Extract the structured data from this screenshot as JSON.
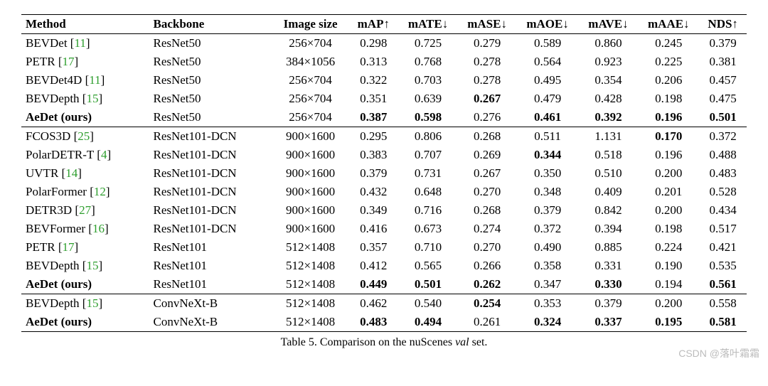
{
  "columns": [
    {
      "key": "method",
      "label": "Method",
      "align": "left"
    },
    {
      "key": "backbone",
      "label": "Backbone",
      "align": "left"
    },
    {
      "key": "imgsize",
      "label": "Image size",
      "align": "center"
    },
    {
      "key": "map",
      "label": "mAP↑",
      "align": "center"
    },
    {
      "key": "mate",
      "label": "mATE↓",
      "align": "center"
    },
    {
      "key": "mase",
      "label": "mASE↓",
      "align": "center"
    },
    {
      "key": "maoe",
      "label": "mAOE↓",
      "align": "center"
    },
    {
      "key": "mave",
      "label": "mAVE↓",
      "align": "center"
    },
    {
      "key": "maae",
      "label": "mAAE↓",
      "align": "center"
    },
    {
      "key": "nds",
      "label": "NDS↑",
      "align": "center"
    }
  ],
  "groups": [
    {
      "rows": [
        {
          "method": {
            "name": "BEVDet",
            "cite": "11"
          },
          "backbone": "ResNet50",
          "imgsize": "256×704",
          "map": "0.298",
          "mate": "0.725",
          "mase": "0.279",
          "maoe": "0.589",
          "mave": "0.860",
          "maae": "0.245",
          "nds": "0.379"
        },
        {
          "method": {
            "name": "PETR",
            "cite": "17"
          },
          "backbone": "ResNet50",
          "imgsize": "384×1056",
          "map": "0.313",
          "mate": "0.768",
          "mase": "0.278",
          "maoe": "0.564",
          "mave": "0.923",
          "maae": "0.225",
          "nds": "0.381"
        },
        {
          "method": {
            "name": "BEVDet4D",
            "cite": "11"
          },
          "backbone": "ResNet50",
          "imgsize": "256×704",
          "map": "0.322",
          "mate": "0.703",
          "mase": "0.278",
          "maoe": "0.495",
          "mave": "0.354",
          "maae": "0.206",
          "nds": "0.457"
        },
        {
          "method": {
            "name": "BEVDepth",
            "cite": "15"
          },
          "backbone": "ResNet50",
          "imgsize": "256×704",
          "map": "0.351",
          "mate": "0.639",
          "mase": "0.267",
          "maoe": "0.479",
          "mave": "0.428",
          "maae": "0.198",
          "nds": "0.475",
          "bold": [
            "mase"
          ]
        },
        {
          "method": {
            "name": "AeDet",
            "suffix": " (ours)",
            "bold": true
          },
          "backbone": "ResNet50",
          "imgsize": "256×704",
          "map": "0.387",
          "mate": "0.598",
          "mase": "0.276",
          "maoe": "0.461",
          "mave": "0.392",
          "maae": "0.196",
          "nds": "0.501",
          "bold": [
            "map",
            "mate",
            "maoe",
            "mave",
            "maae",
            "nds"
          ]
        }
      ]
    },
    {
      "rows": [
        {
          "method": {
            "name": "FCOS3D",
            "cite": "25"
          },
          "backbone": "ResNet101-DCN",
          "imgsize": "900×1600",
          "map": "0.295",
          "mate": "0.806",
          "mase": "0.268",
          "maoe": "0.511",
          "mave": "1.131",
          "maae": "0.170",
          "nds": "0.372",
          "bold": [
            "maae"
          ]
        },
        {
          "method": {
            "name": "PolarDETR-T",
            "cite": "4"
          },
          "backbone": "ResNet101-DCN",
          "imgsize": "900×1600",
          "map": "0.383",
          "mate": "0.707",
          "mase": "0.269",
          "maoe": "0.344",
          "mave": "0.518",
          "maae": "0.196",
          "nds": "0.488",
          "bold": [
            "maoe"
          ]
        },
        {
          "method": {
            "name": "UVTR",
            "cite": "14"
          },
          "backbone": "ResNet101-DCN",
          "imgsize": "900×1600",
          "map": "0.379",
          "mate": "0.731",
          "mase": "0.267",
          "maoe": "0.350",
          "mave": "0.510",
          "maae": "0.200",
          "nds": "0.483"
        },
        {
          "method": {
            "name": "PolarFormer",
            "cite": "12"
          },
          "backbone": "ResNet101-DCN",
          "imgsize": "900×1600",
          "map": "0.432",
          "mate": "0.648",
          "mase": "0.270",
          "maoe": "0.348",
          "mave": "0.409",
          "maae": "0.201",
          "nds": "0.528"
        },
        {
          "method": {
            "name": "DETR3D",
            "cite": "27"
          },
          "backbone": "ResNet101-DCN",
          "imgsize": "900×1600",
          "map": "0.349",
          "mate": "0.716",
          "mase": "0.268",
          "maoe": "0.379",
          "mave": "0.842",
          "maae": "0.200",
          "nds": "0.434"
        },
        {
          "method": {
            "name": "BEVFormer",
            "cite": "16"
          },
          "backbone": "ResNet101-DCN",
          "imgsize": "900×1600",
          "map": "0.416",
          "mate": "0.673",
          "mase": "0.274",
          "maoe": "0.372",
          "mave": "0.394",
          "maae": "0.198",
          "nds": "0.517"
        },
        {
          "method": {
            "name": "PETR",
            "cite": "17"
          },
          "backbone": "ResNet101",
          "imgsize": "512×1408",
          "map": "0.357",
          "mate": "0.710",
          "mase": "0.270",
          "maoe": "0.490",
          "mave": "0.885",
          "maae": "0.224",
          "nds": "0.421"
        },
        {
          "method": {
            "name": "BEVDepth",
            "cite": "15"
          },
          "backbone": "ResNet101",
          "imgsize": "512×1408",
          "map": "0.412",
          "mate": "0.565",
          "mase": "0.266",
          "maoe": "0.358",
          "mave": "0.331",
          "maae": "0.190",
          "nds": "0.535"
        },
        {
          "method": {
            "name": "AeDet",
            "suffix": " (ours)",
            "bold": true
          },
          "backbone": "ResNet101",
          "imgsize": "512×1408",
          "map": "0.449",
          "mate": "0.501",
          "mase": "0.262",
          "maoe": "0.347",
          "mave": "0.330",
          "maae": "0.194",
          "nds": "0.561",
          "bold": [
            "map",
            "mate",
            "mase",
            "mave",
            "nds"
          ]
        }
      ]
    },
    {
      "rows": [
        {
          "method": {
            "name": "BEVDepth",
            "cite": "15"
          },
          "backbone": "ConvNeXt-B",
          "imgsize": "512×1408",
          "map": "0.462",
          "mate": "0.540",
          "mase": "0.254",
          "maoe": "0.353",
          "mave": "0.379",
          "maae": "0.200",
          "nds": "0.558",
          "bold": [
            "mase"
          ]
        },
        {
          "method": {
            "name": "AeDet",
            "suffix": " (ours)",
            "bold": true
          },
          "backbone": "ConvNeXt-B",
          "imgsize": "512×1408",
          "map": "0.483",
          "mate": "0.494",
          "mase": "0.261",
          "maoe": "0.324",
          "mave": "0.337",
          "maae": "0.195",
          "nds": "0.581",
          "bold": [
            "map",
            "mate",
            "maoe",
            "mave",
            "maae",
            "nds"
          ]
        }
      ]
    }
  ],
  "caption_prefix": "Table 5. Comparison on the nuScenes ",
  "caption_italic": "val",
  "caption_suffix": " set.",
  "watermark": "CSDN @落叶霜霜",
  "cite_color": "#2e9e2e"
}
